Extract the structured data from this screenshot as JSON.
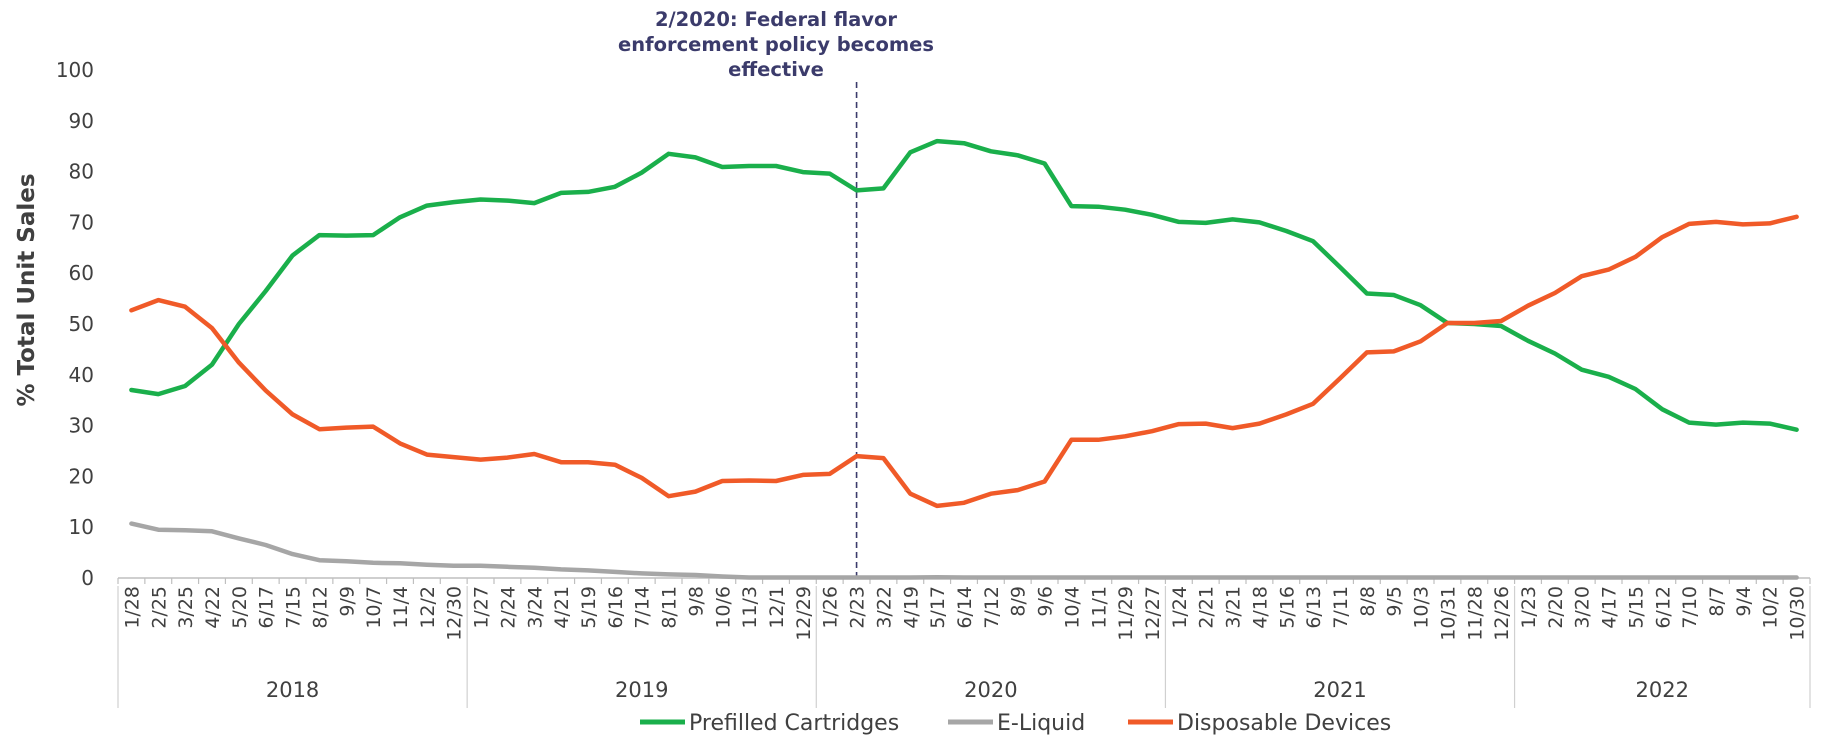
{
  "chart_data": {
    "type": "line",
    "title": "",
    "xlabel": "",
    "ylabel": "% Total Unit Sales",
    "ylim": [
      0,
      100
    ],
    "yticks": [
      0,
      10,
      20,
      30,
      40,
      50,
      60,
      70,
      80,
      90,
      100
    ],
    "grid": false,
    "legend_position": "bottom",
    "x": [
      "1/28",
      "2/25",
      "3/25",
      "4/22",
      "5/20",
      "6/17",
      "7/15",
      "8/12",
      "9/9",
      "10/7",
      "11/4",
      "12/2",
      "12/30",
      "1/27",
      "2/24",
      "3/24",
      "4/21",
      "5/19",
      "6/16",
      "7/14",
      "8/11",
      "9/8",
      "10/6",
      "11/3",
      "12/1",
      "12/29",
      "1/26",
      "2/23",
      "3/22",
      "4/19",
      "5/17",
      "6/14",
      "7/12",
      "8/9",
      "9/6",
      "10/4",
      "11/1",
      "11/29",
      "12/27",
      "1/24",
      "2/21",
      "3/21",
      "4/18",
      "5/16",
      "6/13",
      "7/11",
      "8/8",
      "9/5",
      "10/3",
      "10/31",
      "11/28",
      "12/26",
      "1/23",
      "2/20",
      "3/20",
      "4/17",
      "5/15",
      "6/12",
      "7/10",
      "8/7",
      "9/4",
      "10/2",
      "10/30"
    ],
    "year_groups": [
      {
        "label": "2018",
        "count": 13
      },
      {
        "label": "2019",
        "count": 13
      },
      {
        "label": "2020",
        "count": 13
      },
      {
        "label": "2021",
        "count": 13
      },
      {
        "label": "2022",
        "count": 11
      }
    ],
    "series": [
      {
        "name": "Prefilled Cartridges",
        "color": "#1aaf4b",
        "values": [
          37,
          36.2,
          37.8,
          42,
          50,
          56.5,
          63.5,
          67.5,
          67.4,
          67.5,
          71,
          73.3,
          74,
          74.5,
          74.3,
          73.8,
          75.8,
          76,
          77,
          79.8,
          83.5,
          82.8,
          80.9,
          81.1,
          81.1,
          79.9,
          79.6,
          76.3,
          76.7,
          83.8,
          86,
          85.6,
          84,
          83.2,
          81.6,
          73.2,
          73.1,
          72.5,
          71.5,
          70.1,
          69.9,
          70.6,
          70,
          68.3,
          66.3,
          61.2,
          56,
          55.7,
          53.7,
          50.2,
          50,
          49.6,
          46.7,
          44.2,
          41,
          39.6,
          37.2,
          33.2,
          30.6,
          30.2,
          30.6,
          30.4,
          29.2
        ]
      },
      {
        "name": "E-Liquid",
        "color": "#a6a6a6",
        "values": [
          10.7,
          9.5,
          9.4,
          9.2,
          7.8,
          6.5,
          4.7,
          3.5,
          3.3,
          3,
          2.9,
          2.6,
          2.4,
          2.4,
          2.2,
          2,
          1.7,
          1.5,
          1.2,
          0.9,
          0.7,
          0.6,
          0.3,
          0.1,
          0.1,
          0.1,
          0.1,
          0.1,
          0.1,
          0.1,
          0.15,
          0.1,
          0.1,
          0.1,
          0.1,
          0.1,
          0.1,
          0.1,
          0.1,
          0.1,
          0.1,
          0.1,
          0.1,
          0.1,
          0.1,
          0.1,
          0.1,
          0.1,
          0.1,
          0.1,
          0.1,
          0.1,
          0.1,
          0.1,
          0.1,
          0.1,
          0.1,
          0.1,
          0.1,
          0.1,
          0.1,
          0.1,
          0.1
        ]
      },
      {
        "name": "Disposable Devices",
        "color": "#f05a28",
        "values": [
          52.7,
          54.7,
          53.4,
          49.2,
          42.4,
          36.9,
          32.2,
          29.3,
          29.6,
          29.8,
          26.5,
          24.3,
          23.8,
          23.3,
          23.7,
          24.4,
          22.8,
          22.8,
          22.3,
          19.7,
          16.1,
          17,
          19.1,
          19.2,
          19.1,
          20.3,
          20.5,
          24,
          23.6,
          16.6,
          14.2,
          14.8,
          16.6,
          17.3,
          19,
          27.2,
          27.2,
          27.9,
          28.9,
          30.3,
          30.4,
          29.5,
          30.4,
          32.2,
          34.3,
          39.3,
          44.4,
          44.6,
          46.6,
          50.2,
          50.2,
          50.6,
          53.6,
          56.1,
          59.4,
          60.7,
          63.2,
          67.1,
          69.7,
          70.1,
          69.6,
          69.8,
          71.1
        ]
      }
    ],
    "annotations": [
      {
        "label_lines": [
          "2/2020: Federal flavor",
          "enforcement policy becomes",
          "effective"
        ],
        "x": "2/23",
        "x_index": 27,
        "line_style": "dashed",
        "color": "#3b3b6b"
      }
    ]
  }
}
